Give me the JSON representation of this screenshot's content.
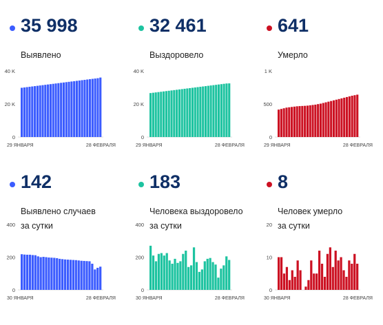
{
  "panels": [
    {
      "value": "35 998",
      "label_lines": [
        "Выявлено"
      ],
      "color": "#3b5cff",
      "chart_data": {
        "type": "bar",
        "x_start_label": "29 ЯНВАРЯ",
        "x_end_label": "28 ФЕВРАЛЯ",
        "yticks": [
          "40 K",
          "20 K",
          "0"
        ],
        "ylim": [
          0,
          40000
        ],
        "values": [
          29800,
          30000,
          30200,
          30400,
          30600,
          30800,
          31000,
          31200,
          31400,
          31600,
          31800,
          32000,
          32200,
          32400,
          32600,
          32800,
          33000,
          33200,
          33400,
          33600,
          33800,
          34000,
          34200,
          34400,
          34600,
          34800,
          35000,
          35200,
          35400,
          35600,
          35998
        ]
      }
    },
    {
      "value": "32 461",
      "label_lines": [
        "Выздоровело"
      ],
      "color": "#1dc3a0",
      "chart_data": {
        "type": "bar",
        "x_start_label": "29 ЯНВАРЯ",
        "x_end_label": "28 ФЕВРАЛЯ",
        "yticks": [
          "40 K",
          "20 K",
          "0"
        ],
        "ylim": [
          0,
          40000
        ],
        "values": [
          26600,
          26800,
          27000,
          27200,
          27400,
          27600,
          27800,
          28000,
          28200,
          28400,
          28600,
          28800,
          29000,
          29200,
          29400,
          29600,
          29800,
          30000,
          30200,
          30400,
          30600,
          30800,
          31000,
          31200,
          31400,
          31600,
          31800,
          32000,
          32200,
          32400,
          32461
        ]
      }
    },
    {
      "value": "641",
      "label_lines": [
        "Умерло"
      ],
      "color": "#cc1122",
      "chart_data": {
        "type": "bar",
        "x_start_label": "29 ЯНВАРЯ",
        "x_end_label": "28 ФЕВРАЛЯ",
        "yticks": [
          "1 K",
          "500",
          "0"
        ],
        "ylim": [
          0,
          1000
        ],
        "values": [
          415,
          425,
          435,
          445,
          450,
          455,
          460,
          465,
          468,
          470,
          472,
          475,
          480,
          485,
          490,
          498,
          505,
          515,
          525,
          535,
          545,
          555,
          565,
          575,
          585,
          595,
          605,
          615,
          625,
          633,
          641
        ]
      }
    },
    {
      "value": "142",
      "label_lines": [
        "Выявлено случаев",
        "за сутки"
      ],
      "color": "#3b5cff",
      "chart_data": {
        "type": "bar",
        "x_start_label": "30 ЯНВАРЯ",
        "x_end_label": "28 ФЕВРАЛЯ",
        "yticks": [
          "400",
          "200",
          "0"
        ],
        "ylim": [
          0,
          400
        ],
        "values": [
          218,
          216,
          215,
          215,
          213,
          212,
          205,
          200,
          202,
          200,
          198,
          197,
          196,
          194,
          190,
          188,
          186,
          185,
          184,
          183,
          182,
          180,
          178,
          177,
          176,
          175,
          160,
          125,
          135,
          142
        ]
      }
    },
    {
      "value": "183",
      "label_lines": [
        "Человека выздоровело",
        "за сутки"
      ],
      "color": "#1dc3a0",
      "chart_data": {
        "type": "bar",
        "x_start_label": "30 ЯНВАРЯ",
        "x_end_label": "28 ФЕВРАЛЯ",
        "yticks": [
          "400",
          "200",
          "0"
        ],
        "ylim": [
          0,
          400
        ],
        "values": [
          270,
          210,
          175,
          220,
          225,
          210,
          225,
          180,
          160,
          190,
          165,
          175,
          220,
          240,
          140,
          150,
          260,
          170,
          110,
          125,
          175,
          190,
          195,
          170,
          155,
          75,
          130,
          150,
          205,
          183
        ]
      }
    },
    {
      "value": "8",
      "label_lines": [
        "Человек умерло",
        "за сутки"
      ],
      "color": "#cc1122",
      "chart_data": {
        "type": "bar",
        "x_start_label": "30 ЯНВАРЯ",
        "x_end_label": "28 ФЕВРАЛЯ",
        "yticks": [
          "20",
          "10",
          "0"
        ],
        "ylim": [
          0,
          20
        ],
        "values": [
          10,
          10,
          5,
          7,
          3,
          6,
          4,
          9,
          6,
          0,
          1,
          3,
          9,
          5,
          5,
          12,
          8,
          4,
          11,
          13,
          7,
          12,
          9,
          10,
          6,
          4,
          9,
          8,
          11,
          8
        ]
      }
    }
  ]
}
